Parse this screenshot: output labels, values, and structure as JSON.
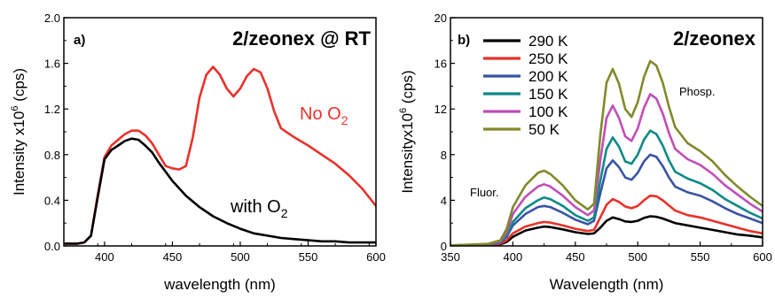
{
  "chart_data": [
    {
      "type": "line",
      "panel_label": "a)",
      "title": "2/zeonex @ RT",
      "xlabel": "wavelength (nm)",
      "ylabel": "Intensity x10",
      "ylabel_sup": "6",
      "ylabel_unit": " (cps)",
      "xlim": [
        370,
        600
      ],
      "ylim": [
        0,
        2.0
      ],
      "xticks": [
        400,
        450,
        500,
        550,
        600
      ],
      "yticks": [
        0.0,
        0.4,
        0.8,
        1.2,
        1.6,
        2.0
      ],
      "ytick_labels": [
        "0.0",
        "0.4",
        "0.8",
        "1.2",
        "1.6",
        "2.0"
      ],
      "series": [
        {
          "label_main": "No O",
          "label_sub": "2",
          "color": "#e8322a",
          "x": [
            370,
            380,
            385,
            390,
            395,
            400,
            405,
            410,
            415,
            420,
            425,
            430,
            435,
            440,
            445,
            450,
            455,
            460,
            465,
            470,
            475,
            480,
            485,
            490,
            495,
            500,
            505,
            510,
            515,
            520,
            525,
            530,
            540,
            550,
            560,
            570,
            580,
            590,
            600
          ],
          "y": [
            0.02,
            0.02,
            0.03,
            0.09,
            0.45,
            0.78,
            0.88,
            0.93,
            0.98,
            1.01,
            1.01,
            0.97,
            0.9,
            0.8,
            0.7,
            0.68,
            0.67,
            0.7,
            0.95,
            1.3,
            1.5,
            1.57,
            1.5,
            1.38,
            1.31,
            1.38,
            1.49,
            1.55,
            1.52,
            1.38,
            1.18,
            1.03,
            0.95,
            0.88,
            0.8,
            0.72,
            0.62,
            0.5,
            0.35
          ]
        },
        {
          "label_main": "with O",
          "label_sub": "2",
          "color": "#000000",
          "x": [
            370,
            380,
            385,
            390,
            395,
            400,
            405,
            410,
            415,
            420,
            425,
            430,
            435,
            440,
            445,
            450,
            460,
            470,
            480,
            490,
            500,
            510,
            520,
            530,
            540,
            550,
            560,
            570,
            580,
            590,
            600
          ],
          "y": [
            0.02,
            0.02,
            0.03,
            0.09,
            0.43,
            0.76,
            0.84,
            0.88,
            0.92,
            0.94,
            0.93,
            0.88,
            0.82,
            0.73,
            0.65,
            0.57,
            0.44,
            0.34,
            0.26,
            0.2,
            0.15,
            0.11,
            0.09,
            0.07,
            0.06,
            0.05,
            0.04,
            0.04,
            0.03,
            0.03,
            0.03
          ]
        }
      ]
    },
    {
      "type": "line",
      "panel_label": "b)",
      "title": "2/zeonex",
      "xlabel": "Wavelength (nm)",
      "ylabel": "Intensityx10",
      "ylabel_sup": "6",
      "ylabel_unit": " (cps)",
      "xlim": [
        350,
        600
      ],
      "ylim": [
        0,
        20
      ],
      "xticks": [
        350,
        400,
        450,
        500,
        550,
        600
      ],
      "yticks": [
        0,
        4,
        8,
        12,
        16,
        20
      ],
      "ytick_labels": [
        "0",
        "4",
        "8",
        "12",
        "16",
        "20"
      ],
      "annotations": [
        "Fluor.",
        "Phosp."
      ],
      "series": [
        {
          "name": "290 K",
          "color": "#000000",
          "x": [
            350,
            380,
            390,
            395,
            400,
            410,
            420,
            425,
            430,
            440,
            450,
            460,
            465,
            470,
            475,
            480,
            485,
            490,
            495,
            500,
            505,
            510,
            515,
            520,
            525,
            530,
            540,
            550,
            560,
            570,
            580,
            590,
            600
          ],
          "y": [
            0.05,
            0.08,
            0.15,
            0.35,
            0.8,
            1.35,
            1.6,
            1.7,
            1.65,
            1.45,
            1.2,
            1.05,
            1.1,
            1.6,
            2.2,
            2.5,
            2.35,
            2.15,
            2.1,
            2.2,
            2.45,
            2.6,
            2.55,
            2.4,
            2.2,
            2.0,
            1.8,
            1.6,
            1.4,
            1.2,
            1.0,
            0.9,
            0.75
          ]
        },
        {
          "name": "250 K",
          "color": "#e8322a",
          "x": [
            350,
            380,
            390,
            395,
            400,
            410,
            420,
            425,
            430,
            440,
            450,
            460,
            465,
            470,
            475,
            480,
            485,
            490,
            495,
            500,
            505,
            510,
            515,
            520,
            525,
            530,
            540,
            550,
            560,
            570,
            580,
            590,
            600
          ],
          "y": [
            0.05,
            0.1,
            0.2,
            0.5,
            1.1,
            1.7,
            2.0,
            2.1,
            2.05,
            1.8,
            1.5,
            1.3,
            1.4,
            2.5,
            3.6,
            4.1,
            3.85,
            3.45,
            3.3,
            3.5,
            4.0,
            4.4,
            4.35,
            4.0,
            3.55,
            3.1,
            2.7,
            2.5,
            2.2,
            1.9,
            1.6,
            1.3,
            1.1
          ]
        },
        {
          "name": "200 K",
          "color": "#3a54a4",
          "x": [
            350,
            380,
            390,
            395,
            400,
            410,
            420,
            425,
            430,
            440,
            450,
            460,
            465,
            470,
            475,
            480,
            485,
            490,
            495,
            500,
            505,
            510,
            515,
            520,
            525,
            530,
            540,
            550,
            560,
            570,
            580,
            590,
            600
          ],
          "y": [
            0.05,
            0.12,
            0.3,
            0.8,
            1.8,
            2.8,
            3.4,
            3.5,
            3.4,
            2.9,
            2.3,
            1.9,
            2.2,
            4.6,
            6.8,
            7.5,
            6.9,
            6.0,
            5.8,
            6.4,
            7.4,
            8.0,
            7.8,
            7.0,
            6.0,
            5.2,
            4.7,
            4.4,
            3.9,
            3.3,
            2.8,
            2.4,
            2.0
          ]
        },
        {
          "name": "150 K",
          "color": "#0c8a86",
          "x": [
            350,
            380,
            390,
            395,
            400,
            410,
            420,
            425,
            430,
            440,
            450,
            460,
            465,
            470,
            475,
            480,
            485,
            490,
            495,
            500,
            505,
            510,
            515,
            520,
            525,
            530,
            540,
            550,
            560,
            570,
            580,
            590,
            600
          ],
          "y": [
            0.05,
            0.13,
            0.35,
            0.95,
            2.1,
            3.3,
            4.0,
            4.25,
            4.1,
            3.5,
            2.7,
            2.2,
            2.5,
            5.7,
            8.5,
            9.5,
            8.7,
            7.4,
            7.2,
            8.0,
            9.3,
            10.1,
            9.8,
            8.8,
            7.5,
            6.5,
            5.9,
            5.5,
            4.9,
            4.1,
            3.5,
            2.9,
            2.4
          ]
        },
        {
          "name": "100 K",
          "color": "#c04fb8",
          "x": [
            350,
            380,
            390,
            395,
            400,
            410,
            420,
            425,
            430,
            440,
            450,
            460,
            465,
            470,
            475,
            480,
            485,
            490,
            495,
            500,
            505,
            510,
            515,
            520,
            525,
            530,
            540,
            550,
            560,
            570,
            580,
            590,
            600
          ],
          "y": [
            0.05,
            0.15,
            0.4,
            1.2,
            2.8,
            4.3,
            5.2,
            5.4,
            5.2,
            4.4,
            3.4,
            2.7,
            3.1,
            7.5,
            11.2,
            12.3,
            11.2,
            9.6,
            9.2,
            10.3,
            12.1,
            13.3,
            12.9,
            11.6,
            9.9,
            8.5,
            7.6,
            7.1,
            6.3,
            5.3,
            4.5,
            3.7,
            3.0
          ]
        },
        {
          "name": "50 K",
          "color": "#808a2a",
          "x": [
            350,
            380,
            390,
            395,
            400,
            410,
            420,
            425,
            430,
            440,
            450,
            460,
            465,
            470,
            475,
            480,
            485,
            490,
            495,
            500,
            505,
            510,
            515,
            520,
            525,
            530,
            540,
            550,
            560,
            570,
            580,
            590,
            600
          ],
          "y": [
            0.05,
            0.18,
            0.5,
            1.5,
            3.4,
            5.3,
            6.4,
            6.6,
            6.3,
            5.3,
            4.0,
            3.2,
            3.7,
            9.7,
            14.3,
            15.5,
            14.2,
            12.0,
            11.3,
            12.6,
            14.8,
            16.2,
            15.8,
            14.3,
            12.2,
            10.4,
            9.0,
            8.3,
            7.4,
            6.2,
            5.2,
            4.3,
            3.5
          ]
        }
      ]
    }
  ]
}
